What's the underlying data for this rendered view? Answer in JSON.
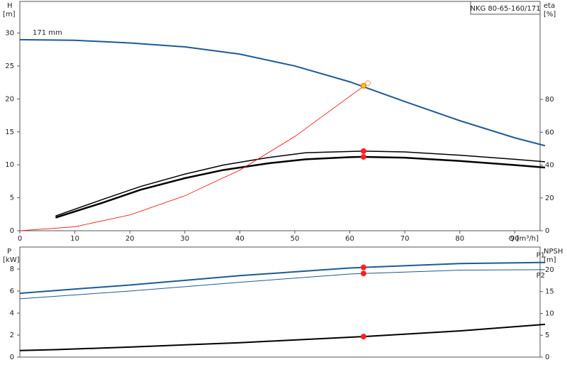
{
  "chart_data": [
    {
      "type": "line",
      "title": "NKG 80-65-160/171",
      "x_label": "Q [m³/h]",
      "y_label": "H",
      "y_unit": "[m]",
      "y2_label": "eta",
      "y2_unit": "[%]",
      "xlim": [
        0,
        94.6
      ],
      "xticks": [
        0,
        10,
        20,
        30,
        40,
        50,
        60,
        70,
        80,
        90
      ],
      "ylim": [
        0,
        34.8
      ],
      "yticks": [
        0,
        5,
        10,
        15,
        20,
        25,
        30
      ],
      "y2lim": [
        0,
        139.7
      ],
      "y2ticks": [
        0,
        20,
        40,
        60,
        80
      ],
      "series": [
        {
          "name": "171 mm",
          "color": "#1f5a96",
          "x": [
            0,
            10,
            20,
            30,
            40,
            50,
            60,
            70,
            80,
            90,
            95.5
          ],
          "values": [
            29.0,
            28.9,
            28.5,
            27.9,
            26.8,
            25.0,
            22.6,
            19.6,
            16.7,
            14.1,
            12.9
          ]
        },
        {
          "color": "#000000",
          "axis": "y2",
          "x": [
            6.5,
            15,
            22,
            30,
            37,
            45,
            52,
            60,
            62.5,
            70,
            80,
            90,
            95.5
          ],
          "values": [
            9,
            19,
            27,
            34.5,
            40,
            44.5,
            47.5,
            48.3,
            48.5,
            48,
            46,
            43.5,
            42
          ]
        },
        {
          "color": "#000000",
          "axis": "y2",
          "x": [
            6.5,
            15,
            22,
            30,
            37,
            45,
            52,
            60,
            62.5,
            70,
            80,
            90,
            95.5
          ],
          "values": [
            8,
            17,
            25,
            32,
            37,
            41,
            43.5,
            44.8,
            45,
            44.5,
            42.5,
            40,
            38.5
          ]
        },
        {
          "color": "#ff0000",
          "x": [
            0,
            10,
            20,
            30,
            40,
            50,
            60,
            63.3
          ],
          "values": [
            0,
            0.6,
            2.4,
            5.3,
            9.2,
            14.3,
            20.4,
            22.4
          ]
        }
      ],
      "markers": [
        {
          "x": 63.3,
          "y": 22.4,
          "color": "#ff9966",
          "hollow": true
        },
        {
          "x": 62.5,
          "y": 22.0,
          "color": "#f5c400"
        },
        {
          "x": 62.5,
          "y": 48.5,
          "color": "#ff2020",
          "axis": "y2"
        },
        {
          "x": 62.5,
          "y": 45,
          "color": "#ff2020",
          "axis": "y2"
        }
      ]
    },
    {
      "type": "line",
      "y_label": "P",
      "y_unit": "[kW]",
      "y2_label": "NPSH",
      "y2_unit": "[m]",
      "xlim": [
        0,
        94.6
      ],
      "ylim": [
        0,
        10
      ],
      "yticks": [
        0,
        2,
        4,
        6,
        8
      ],
      "y2lim": [
        0,
        25.2
      ],
      "y2ticks": [
        0,
        5,
        10,
        15,
        20
      ],
      "series": [
        {
          "name": "P1",
          "color": "#1f5a96",
          "x": [
            0,
            6.5,
            20,
            40,
            60,
            62.5,
            80,
            95.5
          ],
          "values": [
            5.8,
            6.05,
            6.55,
            7.4,
            8.1,
            8.15,
            8.5,
            8.6
          ]
        },
        {
          "name": "P2",
          "color": "#1f5a96",
          "x": [
            0,
            20,
            40,
            60,
            62.5,
            80,
            95.5
          ],
          "values": [
            5.3,
            6.0,
            6.8,
            7.55,
            7.6,
            7.9,
            7.95
          ]
        },
        {
          "color": "#000000",
          "axis": "y2",
          "x": [
            0,
            6.5,
            20,
            40,
            62.5,
            80,
            95.5
          ],
          "values": [
            1.5,
            1.7,
            2.3,
            3.3,
            4.7,
            6.0,
            7.5
          ]
        }
      ],
      "markers": [
        {
          "x": 62.5,
          "y": 8.15,
          "color": "#ff2020"
        },
        {
          "x": 62.5,
          "y": 7.6,
          "color": "#ff2020"
        },
        {
          "x": 62.5,
          "y": 4.7,
          "color": "#ff2020",
          "axis": "y2"
        }
      ]
    }
  ]
}
